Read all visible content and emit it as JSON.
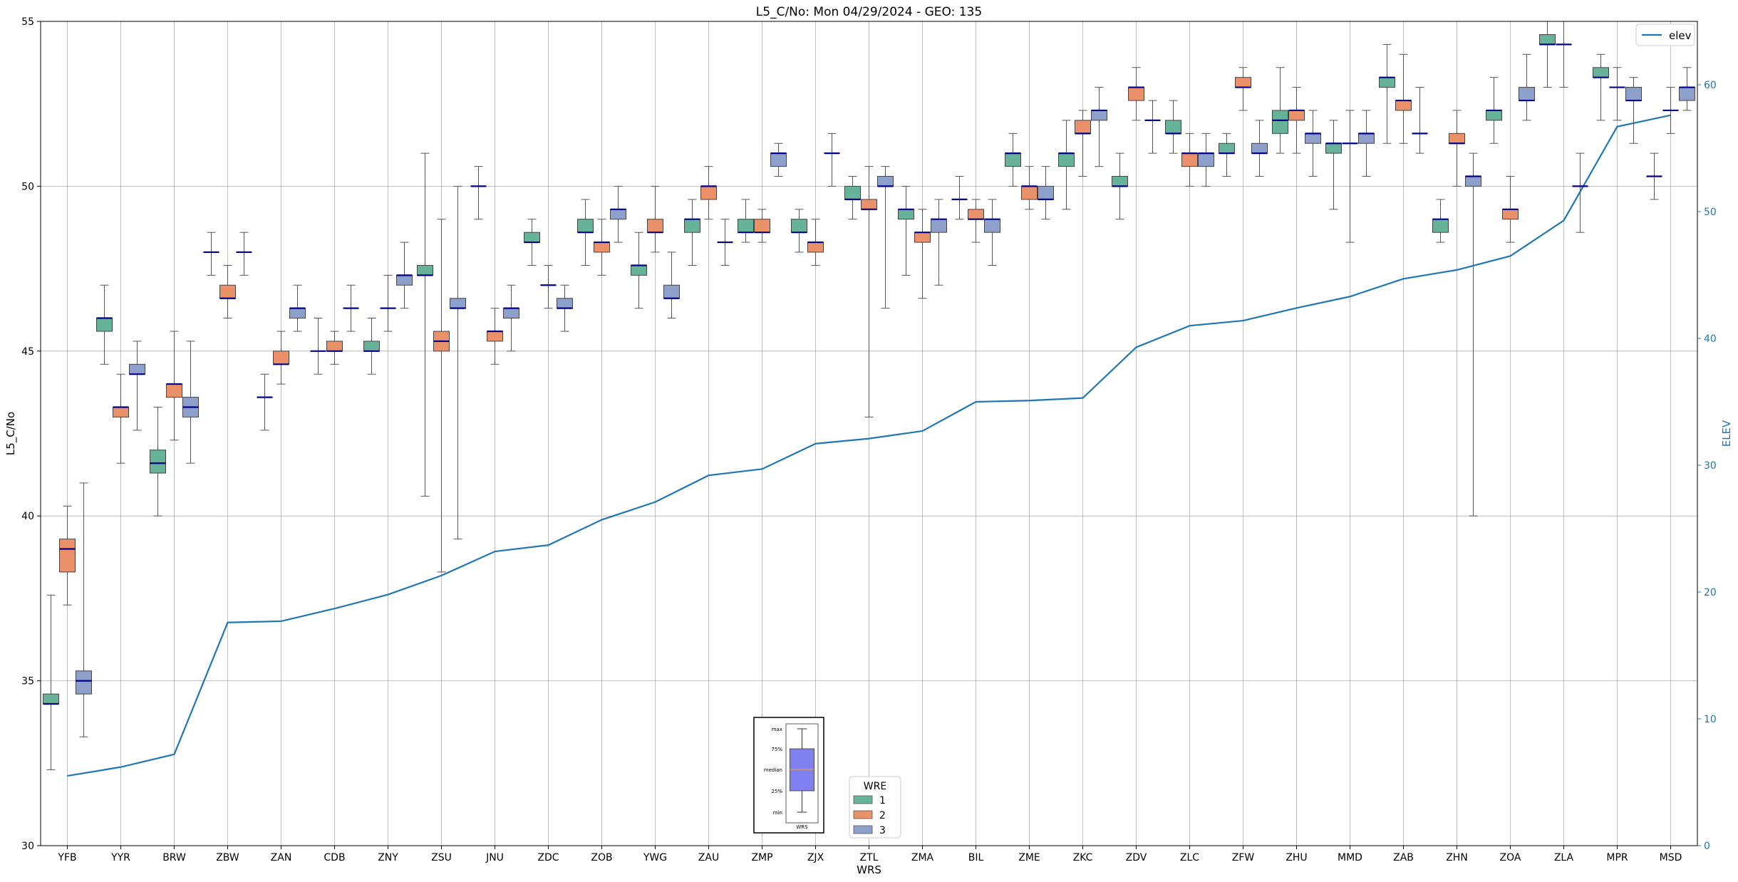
{
  "chart_data": {
    "type": "box",
    "title": "L5_C/No: Mon 04/29/2024 - GEO: 135",
    "xlabel": "WRS",
    "ylabel": "L5_C/No",
    "y2label": "ELEV",
    "ylim": [
      30,
      55
    ],
    "y2lim": [
      0,
      65
    ],
    "yticks": [
      30,
      35,
      40,
      45,
      50,
      55
    ],
    "y2ticks": [
      0,
      10,
      20,
      30,
      40,
      50,
      60
    ],
    "grid": true,
    "categories": [
      "YFB",
      "YYR",
      "BRW",
      "ZBW",
      "ZAN",
      "CDB",
      "ZNY",
      "ZSU",
      "JNU",
      "ZDC",
      "ZOB",
      "YWG",
      "ZAU",
      "ZMP",
      "ZJX",
      "ZTL",
      "ZMA",
      "BIL",
      "ZME",
      "ZKC",
      "ZDV",
      "ZLC",
      "ZFW",
      "ZHU",
      "MMD",
      "ZAB",
      "ZHN",
      "ZOA",
      "ZLA",
      "MPR",
      "MSD"
    ],
    "box_legend": {
      "title": "WRE",
      "position": "bottom-center",
      "entries": [
        {
          "label": "1",
          "color": "#66b39a"
        },
        {
          "label": "2",
          "color": "#ea916a"
        },
        {
          "label": "3",
          "color": "#8d9fcb"
        }
      ]
    },
    "key_inset": {
      "labels": [
        "max",
        "75%",
        "median",
        "25%",
        "min"
      ],
      "xlabel": "WRS",
      "box_color": "#8080f0"
    },
    "line_series": {
      "name": "elev",
      "color": "#1f77b4",
      "legend_position": "top-right",
      "values": [
        5.5,
        6.2,
        7.2,
        17.6,
        17.7,
        18.7,
        19.8,
        21.3,
        23.2,
        23.7,
        25.7,
        27.1,
        29.2,
        29.7,
        31.7,
        32.1,
        32.7,
        35.0,
        35.1,
        35.3,
        39.3,
        41.0,
        41.4,
        42.4,
        43.3,
        44.7,
        45.4,
        46.5,
        49.3,
        56.7,
        57.6
      ]
    },
    "boxes": [
      {
        "station": "YFB",
        "wre": 1,
        "min": 32.3,
        "q1": 34.3,
        "median": 34.3,
        "q3": 34.6,
        "max": 37.6
      },
      {
        "station": "YFB",
        "wre": 2,
        "min": 37.3,
        "q1": 38.3,
        "median": 39.0,
        "q3": 39.3,
        "max": 40.3
      },
      {
        "station": "YFB",
        "wre": 3,
        "min": 33.3,
        "q1": 34.6,
        "median": 35.0,
        "q3": 35.3,
        "max": 41.0
      },
      {
        "station": "YYR",
        "wre": 1,
        "min": 44.6,
        "q1": 45.6,
        "median": 46.0,
        "q3": 46.0,
        "max": 47.0
      },
      {
        "station": "YYR",
        "wre": 2,
        "min": 41.6,
        "q1": 43.0,
        "median": 43.3,
        "q3": 43.3,
        "max": 44.3
      },
      {
        "station": "YYR",
        "wre": 3,
        "min": 42.6,
        "q1": 44.3,
        "median": 44.3,
        "q3": 44.6,
        "max": 45.3
      },
      {
        "station": "BRW",
        "wre": 1,
        "min": 40.0,
        "q1": 41.3,
        "median": 41.6,
        "q3": 42.0,
        "max": 43.3
      },
      {
        "station": "BRW",
        "wre": 2,
        "min": 42.3,
        "q1": 43.6,
        "median": 44.0,
        "q3": 44.0,
        "max": 45.6
      },
      {
        "station": "BRW",
        "wre": 3,
        "min": 41.6,
        "q1": 43.0,
        "median": 43.3,
        "q3": 43.6,
        "max": 45.3
      },
      {
        "station": "ZBW",
        "wre": 1,
        "min": 47.3,
        "q1": 48.0,
        "median": 48.0,
        "q3": 48.0,
        "max": 48.6
      },
      {
        "station": "ZBW",
        "wre": 2,
        "min": 46.0,
        "q1": 46.6,
        "median": 46.6,
        "q3": 47.0,
        "max": 47.6
      },
      {
        "station": "ZBW",
        "wre": 3,
        "min": 47.3,
        "q1": 48.0,
        "median": 48.0,
        "q3": 48.0,
        "max": 48.6
      },
      {
        "station": "ZAN",
        "wre": 1,
        "min": 42.6,
        "q1": 43.6,
        "median": 43.6,
        "q3": 43.6,
        "max": 44.3
      },
      {
        "station": "ZAN",
        "wre": 2,
        "min": 44.0,
        "q1": 44.6,
        "median": 44.6,
        "q3": 45.0,
        "max": 45.6
      },
      {
        "station": "ZAN",
        "wre": 3,
        "min": 45.6,
        "q1": 46.0,
        "median": 46.3,
        "q3": 46.3,
        "max": 47.0
      },
      {
        "station": "CDB",
        "wre": 1,
        "min": 44.3,
        "q1": 45.0,
        "median": 45.0,
        "q3": 45.0,
        "max": 46.0
      },
      {
        "station": "CDB",
        "wre": 2,
        "min": 44.6,
        "q1": 45.0,
        "median": 45.0,
        "q3": 45.3,
        "max": 45.6
      },
      {
        "station": "CDB",
        "wre": 3,
        "min": 45.6,
        "q1": 46.3,
        "median": 46.3,
        "q3": 46.3,
        "max": 47.0
      },
      {
        "station": "ZNY",
        "wre": 1,
        "min": 44.3,
        "q1": 45.0,
        "median": 45.0,
        "q3": 45.3,
        "max": 46.0
      },
      {
        "station": "ZNY",
        "wre": 2,
        "min": 45.6,
        "q1": 46.3,
        "median": 46.3,
        "q3": 46.3,
        "max": 47.3
      },
      {
        "station": "ZNY",
        "wre": 3,
        "min": 46.3,
        "q1": 47.0,
        "median": 47.3,
        "q3": 47.3,
        "max": 48.3
      },
      {
        "station": "ZSU",
        "wre": 1,
        "min": 40.6,
        "q1": 47.3,
        "median": 47.3,
        "q3": 47.6,
        "max": 51.0
      },
      {
        "station": "ZSU",
        "wre": 2,
        "min": 38.3,
        "q1": 45.0,
        "median": 45.3,
        "q3": 45.6,
        "max": 49.0
      },
      {
        "station": "ZSU",
        "wre": 3,
        "min": 39.3,
        "q1": 46.3,
        "median": 46.3,
        "q3": 46.6,
        "max": 50.0
      },
      {
        "station": "JNU",
        "wre": 1,
        "min": 49.0,
        "q1": 50.0,
        "median": 50.0,
        "q3": 50.0,
        "max": 50.6
      },
      {
        "station": "JNU",
        "wre": 2,
        "min": 44.6,
        "q1": 45.3,
        "median": 45.6,
        "q3": 45.6,
        "max": 46.3
      },
      {
        "station": "JNU",
        "wre": 3,
        "min": 45.0,
        "q1": 46.0,
        "median": 46.3,
        "q3": 46.3,
        "max": 47.0
      },
      {
        "station": "ZDC",
        "wre": 1,
        "min": 47.6,
        "q1": 48.3,
        "median": 48.3,
        "q3": 48.6,
        "max": 49.0
      },
      {
        "station": "ZDC",
        "wre": 2,
        "min": 46.3,
        "q1": 47.0,
        "median": 47.0,
        "q3": 47.0,
        "max": 47.6
      },
      {
        "station": "ZDC",
        "wre": 3,
        "min": 45.6,
        "q1": 46.3,
        "median": 46.3,
        "q3": 46.6,
        "max": 47.0
      },
      {
        "station": "ZOB",
        "wre": 1,
        "min": 47.6,
        "q1": 48.6,
        "median": 48.6,
        "q3": 49.0,
        "max": 49.6
      },
      {
        "station": "ZOB",
        "wre": 2,
        "min": 47.3,
        "q1": 48.0,
        "median": 48.3,
        "q3": 48.3,
        "max": 49.0
      },
      {
        "station": "ZOB",
        "wre": 3,
        "min": 48.3,
        "q1": 49.0,
        "median": 49.3,
        "q3": 49.3,
        "max": 50.0
      },
      {
        "station": "YWG",
        "wre": 1,
        "min": 46.3,
        "q1": 47.3,
        "median": 47.6,
        "q3": 47.6,
        "max": 48.6
      },
      {
        "station": "YWG",
        "wre": 2,
        "min": 48.0,
        "q1": 48.6,
        "median": 48.6,
        "q3": 49.0,
        "max": 50.0
      },
      {
        "station": "YWG",
        "wre": 3,
        "min": 46.0,
        "q1": 46.6,
        "median": 46.6,
        "q3": 47.0,
        "max": 48.0
      },
      {
        "station": "ZAU",
        "wre": 1,
        "min": 47.6,
        "q1": 48.6,
        "median": 49.0,
        "q3": 49.0,
        "max": 49.6
      },
      {
        "station": "ZAU",
        "wre": 2,
        "min": 49.0,
        "q1": 49.6,
        "median": 50.0,
        "q3": 50.0,
        "max": 50.6
      },
      {
        "station": "ZAU",
        "wre": 3,
        "min": 47.6,
        "q1": 48.3,
        "median": 48.3,
        "q3": 48.3,
        "max": 49.0
      },
      {
        "station": "ZMP",
        "wre": 1,
        "min": 48.3,
        "q1": 48.6,
        "median": 48.6,
        "q3": 49.0,
        "max": 49.6
      },
      {
        "station": "ZMP",
        "wre": 2,
        "min": 48.3,
        "q1": 48.6,
        "median": 48.6,
        "q3": 49.0,
        "max": 49.3
      },
      {
        "station": "ZMP",
        "wre": 3,
        "min": 50.3,
        "q1": 50.6,
        "median": 51.0,
        "q3": 51.0,
        "max": 51.3
      },
      {
        "station": "ZJX",
        "wre": 1,
        "min": 48.0,
        "q1": 48.6,
        "median": 48.6,
        "q3": 49.0,
        "max": 49.3
      },
      {
        "station": "ZJX",
        "wre": 2,
        "min": 47.6,
        "q1": 48.0,
        "median": 48.3,
        "q3": 48.3,
        "max": 49.0
      },
      {
        "station": "ZJX",
        "wre": 3,
        "min": 50.0,
        "q1": 51.0,
        "median": 51.0,
        "q3": 51.0,
        "max": 51.6
      },
      {
        "station": "ZTL",
        "wre": 1,
        "min": 49.0,
        "q1": 49.6,
        "median": 49.6,
        "q3": 50.0,
        "max": 50.3
      },
      {
        "station": "ZTL",
        "wre": 2,
        "min": 43.0,
        "q1": 49.3,
        "median": 49.3,
        "q3": 49.6,
        "max": 50.6
      },
      {
        "station": "ZTL",
        "wre": 3,
        "min": 46.3,
        "q1": 50.0,
        "median": 50.0,
        "q3": 50.3,
        "max": 50.6
      },
      {
        "station": "ZMA",
        "wre": 1,
        "min": 47.3,
        "q1": 49.0,
        "median": 49.3,
        "q3": 49.3,
        "max": 50.0
      },
      {
        "station": "ZMA",
        "wre": 2,
        "min": 46.6,
        "q1": 48.3,
        "median": 48.6,
        "q3": 48.6,
        "max": 49.3
      },
      {
        "station": "ZMA",
        "wre": 3,
        "min": 47.0,
        "q1": 48.6,
        "median": 49.0,
        "q3": 49.0,
        "max": 49.6
      },
      {
        "station": "BIL",
        "wre": 1,
        "min": 49.0,
        "q1": 49.6,
        "median": 49.6,
        "q3": 49.6,
        "max": 50.3
      },
      {
        "station": "BIL",
        "wre": 2,
        "min": 48.3,
        "q1": 49.0,
        "median": 49.0,
        "q3": 49.3,
        "max": 49.6
      },
      {
        "station": "BIL",
        "wre": 3,
        "min": 47.6,
        "q1": 48.6,
        "median": 49.0,
        "q3": 49.0,
        "max": 49.6
      },
      {
        "station": "ZME",
        "wre": 1,
        "min": 50.0,
        "q1": 50.6,
        "median": 51.0,
        "q3": 51.0,
        "max": 51.6
      },
      {
        "station": "ZME",
        "wre": 2,
        "min": 49.3,
        "q1": 49.6,
        "median": 50.0,
        "q3": 50.0,
        "max": 50.6
      },
      {
        "station": "ZME",
        "wre": 3,
        "min": 49.0,
        "q1": 49.6,
        "median": 49.6,
        "q3": 50.0,
        "max": 50.6
      },
      {
        "station": "ZKC",
        "wre": 1,
        "min": 49.3,
        "q1": 50.6,
        "median": 51.0,
        "q3": 51.0,
        "max": 52.0
      },
      {
        "station": "ZKC",
        "wre": 2,
        "min": 50.3,
        "q1": 51.6,
        "median": 51.6,
        "q3": 52.0,
        "max": 52.3
      },
      {
        "station": "ZKC",
        "wre": 3,
        "min": 50.6,
        "q1": 52.0,
        "median": 52.3,
        "q3": 52.3,
        "max": 53.0
      },
      {
        "station": "ZDV",
        "wre": 1,
        "min": 49.0,
        "q1": 50.0,
        "median": 50.0,
        "q3": 50.3,
        "max": 51.0
      },
      {
        "station": "ZDV",
        "wre": 2,
        "min": 52.0,
        "q1": 52.6,
        "median": 53.0,
        "q3": 53.0,
        "max": 53.6
      },
      {
        "station": "ZDV",
        "wre": 3,
        "min": 51.0,
        "q1": 52.0,
        "median": 52.0,
        "q3": 52.0,
        "max": 52.6
      },
      {
        "station": "ZLC",
        "wre": 1,
        "min": 51.0,
        "q1": 51.6,
        "median": 51.6,
        "q3": 52.0,
        "max": 52.6
      },
      {
        "station": "ZLC",
        "wre": 2,
        "min": 50.0,
        "q1": 50.6,
        "median": 51.0,
        "q3": 51.0,
        "max": 51.6
      },
      {
        "station": "ZLC",
        "wre": 3,
        "min": 50.0,
        "q1": 50.6,
        "median": 51.0,
        "q3": 51.0,
        "max": 51.6
      },
      {
        "station": "ZFW",
        "wre": 1,
        "min": 50.3,
        "q1": 51.0,
        "median": 51.0,
        "q3": 51.3,
        "max": 51.6
      },
      {
        "station": "ZFW",
        "wre": 2,
        "min": 52.3,
        "q1": 53.0,
        "median": 53.0,
        "q3": 53.3,
        "max": 53.6
      },
      {
        "station": "ZFW",
        "wre": 3,
        "min": 50.3,
        "q1": 51.0,
        "median": 51.0,
        "q3": 51.3,
        "max": 52.0
      },
      {
        "station": "ZHU",
        "wre": 1,
        "min": 51.0,
        "q1": 51.6,
        "median": 52.0,
        "q3": 52.3,
        "max": 53.6
      },
      {
        "station": "ZHU",
        "wre": 2,
        "min": 51.0,
        "q1": 52.0,
        "median": 52.3,
        "q3": 52.3,
        "max": 53.0
      },
      {
        "station": "ZHU",
        "wre": 3,
        "min": 50.3,
        "q1": 51.3,
        "median": 51.6,
        "q3": 51.6,
        "max": 52.3
      },
      {
        "station": "MMD",
        "wre": 1,
        "min": 49.3,
        "q1": 51.0,
        "median": 51.3,
        "q3": 51.3,
        "max": 52.0
      },
      {
        "station": "MMD",
        "wre": 2,
        "min": 48.3,
        "q1": 51.3,
        "median": 51.3,
        "q3": 51.3,
        "max": 52.3
      },
      {
        "station": "MMD",
        "wre": 3,
        "min": 50.3,
        "q1": 51.3,
        "median": 51.6,
        "q3": 51.6,
        "max": 52.3
      },
      {
        "station": "ZAB",
        "wre": 1,
        "min": 51.3,
        "q1": 53.0,
        "median": 53.3,
        "q3": 53.3,
        "max": 54.3
      },
      {
        "station": "ZAB",
        "wre": 2,
        "min": 51.3,
        "q1": 52.3,
        "median": 52.6,
        "q3": 52.6,
        "max": 54.0
      },
      {
        "station": "ZAB",
        "wre": 3,
        "min": 51.0,
        "q1": 51.6,
        "median": 51.6,
        "q3": 51.6,
        "max": 53.0
      },
      {
        "station": "ZHN",
        "wre": 1,
        "min": 48.3,
        "q1": 48.6,
        "median": 49.0,
        "q3": 49.0,
        "max": 49.6
      },
      {
        "station": "ZHN",
        "wre": 2,
        "min": 50.0,
        "q1": 51.3,
        "median": 51.3,
        "q3": 51.6,
        "max": 52.3
      },
      {
        "station": "ZHN",
        "wre": 3,
        "min": 40.0,
        "q1": 50.0,
        "median": 50.3,
        "q3": 50.3,
        "max": 51.0
      },
      {
        "station": "ZOA",
        "wre": 1,
        "min": 51.3,
        "q1": 52.0,
        "median": 52.3,
        "q3": 52.3,
        "max": 53.3
      },
      {
        "station": "ZOA",
        "wre": 2,
        "min": 48.3,
        "q1": 49.0,
        "median": 49.3,
        "q3": 49.3,
        "max": 50.3
      },
      {
        "station": "ZOA",
        "wre": 3,
        "min": 52.0,
        "q1": 52.6,
        "median": 52.6,
        "q3": 53.0,
        "max": 54.0
      },
      {
        "station": "ZLA",
        "wre": 1,
        "min": 53.0,
        "q1": 54.3,
        "median": 54.3,
        "q3": 54.6,
        "max": 55.0
      },
      {
        "station": "ZLA",
        "wre": 2,
        "min": 53.0,
        "q1": 54.3,
        "median": 54.3,
        "q3": 54.3,
        "max": 55.0
      },
      {
        "station": "ZLA",
        "wre": 3,
        "min": 48.6,
        "q1": 50.0,
        "median": 50.0,
        "q3": 50.0,
        "max": 51.0
      },
      {
        "station": "MPR",
        "wre": 1,
        "min": 52.0,
        "q1": 53.3,
        "median": 53.3,
        "q3": 53.6,
        "max": 54.0
      },
      {
        "station": "MPR",
        "wre": 2,
        "min": 52.0,
        "q1": 53.0,
        "median": 53.0,
        "q3": 53.0,
        "max": 53.6
      },
      {
        "station": "MPR",
        "wre": 3,
        "min": 51.3,
        "q1": 52.6,
        "median": 52.6,
        "q3": 53.0,
        "max": 53.3
      },
      {
        "station": "MSD",
        "wre": 1,
        "min": 49.6,
        "q1": 50.3,
        "median": 50.3,
        "q3": 50.3,
        "max": 51.0
      },
      {
        "station": "MSD",
        "wre": 2,
        "min": 51.6,
        "q1": 52.3,
        "median": 52.3,
        "q3": 52.3,
        "max": 53.0
      },
      {
        "station": "MSD",
        "wre": 3,
        "min": 52.3,
        "q1": 52.6,
        "median": 53.0,
        "q3": 53.0,
        "max": 53.6
      }
    ]
  }
}
